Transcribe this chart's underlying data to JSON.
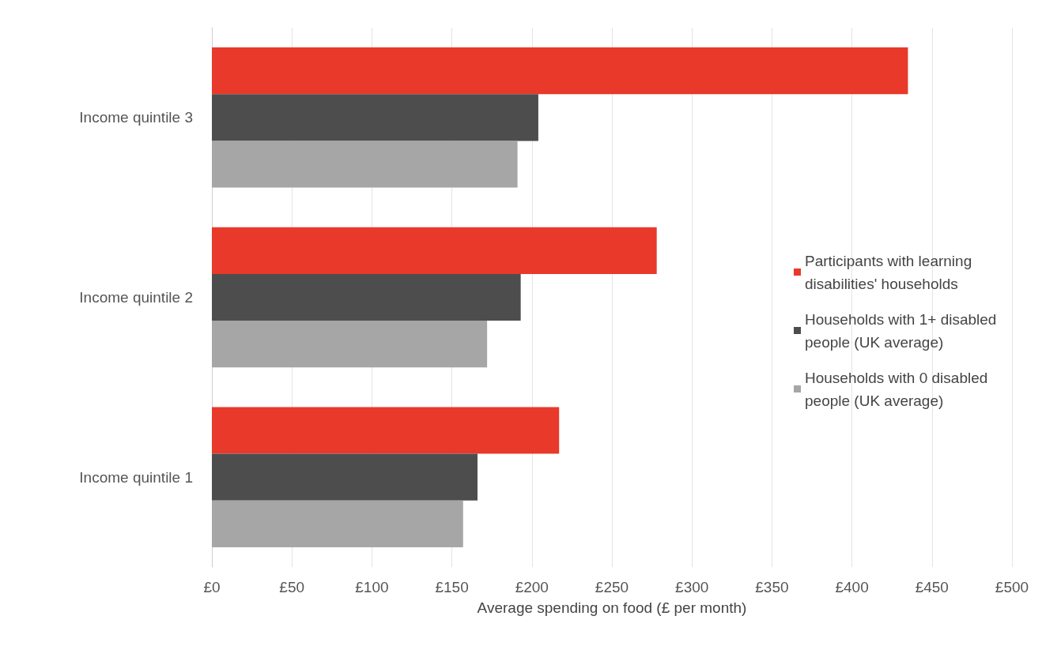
{
  "chart_data": {
    "type": "bar",
    "orientation": "horizontal",
    "xlabel": "Average spending on food (£ per month)",
    "categories": [
      "Income quintile 3",
      "Income quintile 2",
      "Income quintile 1"
    ],
    "series": [
      {
        "name": "Participants with learning disabilities' households",
        "color": "#e8392b",
        "values": [
          435,
          278,
          217
        ]
      },
      {
        "name": "Households with 1+ disabled people (UK average)",
        "color": "#4d4d4d",
        "values": [
          204,
          193,
          166
        ]
      },
      {
        "name": "Households with 0 disabled people (UK average)",
        "color": "#a6a6a6",
        "values": [
          191,
          172,
          157
        ]
      }
    ],
    "xlim": [
      0,
      500
    ],
    "xticks": [
      {
        "value": 0,
        "label": "£0"
      },
      {
        "value": 50,
        "label": "£50"
      },
      {
        "value": 100,
        "label": "£100"
      },
      {
        "value": 150,
        "label": "£150"
      },
      {
        "value": 200,
        "label": "£200"
      },
      {
        "value": 250,
        "label": "£250"
      },
      {
        "value": 300,
        "label": "£300"
      },
      {
        "value": 350,
        "label": "£350"
      },
      {
        "value": 400,
        "label": "£400"
      },
      {
        "value": 450,
        "label": "£450"
      },
      {
        "value": 500,
        "label": "£500"
      }
    ],
    "grid": "x",
    "legend": "right"
  }
}
